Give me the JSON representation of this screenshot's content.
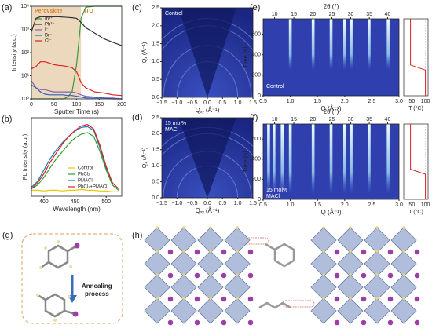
{
  "panel_labels": [
    "(a)",
    "(b)",
    "(c)",
    "(d)",
    "(e)",
    "(f)",
    "(g)",
    "(h)"
  ],
  "diagram": {
    "annealing": [
      "Annealing",
      "process"
    ]
  },
  "chart_data": [
    {
      "type": "line",
      "log_y": true,
      "x": [
        0,
        10,
        20,
        30,
        40,
        50,
        60,
        70,
        80,
        90,
        100,
        110,
        120,
        140,
        160,
        180,
        200
      ],
      "xlim": [
        0,
        200
      ],
      "xticks": [
        0,
        50,
        100,
        150,
        200
      ],
      "ylim": [
        1,
        10000
      ],
      "yticks": [
        {
          "value": 1,
          "label": "10⁰"
        },
        {
          "value": 10,
          "label": "10¹"
        },
        {
          "value": 100,
          "label": "10²"
        },
        {
          "value": 1000,
          "label": "10³"
        },
        {
          "value": 10000,
          "label": "10⁴"
        }
      ],
      "xlabel": "Sputter Time (s)",
      "ylabel": "Intensity (a.u.)",
      "legend": "upper left",
      "regions": [
        {
          "label": "Perovskite",
          "from": 0,
          "to": 110,
          "color": "#ecd9bd"
        },
        {
          "label": "ITO",
          "from": 110,
          "to": 200,
          "color": "#ffffff"
        }
      ],
      "series": [
        {
          "name": "In³⁺",
          "color": "#3a9a3a",
          "values": [
            1,
            1,
            1,
            1,
            1,
            1,
            1,
            1,
            1.2,
            2,
            30,
            3000,
            9000,
            10000,
            10000,
            10000,
            10000
          ]
        },
        {
          "name": "Pb²⁺",
          "color": "#333333",
          "values": [
            800,
            3000,
            3500,
            3500,
            3500,
            3500,
            3500,
            3400,
            3300,
            3200,
            3000,
            2000,
            1200,
            700,
            400,
            280,
            200
          ]
        },
        {
          "name": "I⁻",
          "color": "#9060b0",
          "values": [
            6,
            3,
            2.5,
            2.5,
            2.2,
            2,
            2,
            2,
            2,
            2,
            1.8,
            1.5,
            1.3,
            1.2,
            1.1,
            1.1,
            1
          ]
        },
        {
          "name": "Br⁻",
          "color": "#3060c0",
          "values": [
            4,
            3,
            2,
            1.6,
            1.5,
            1.5,
            1.5,
            1.5,
            1.4,
            1.4,
            1.3,
            1.2,
            1.1,
            1.1,
            1.1,
            1,
            1
          ]
        },
        {
          "name": "Cl⁻",
          "color": "#e02020",
          "values": [
            20,
            25,
            40,
            40,
            35,
            30,
            28,
            27,
            25,
            22,
            15,
            5,
            3,
            2,
            1.8,
            1.5,
            1.4
          ]
        }
      ]
    },
    {
      "type": "line",
      "x": [
        380,
        390,
        400,
        410,
        420,
        430,
        440,
        450,
        460,
        470,
        480,
        490,
        500,
        510,
        520
      ],
      "xlim": [
        380,
        525
      ],
      "xticks": [
        400,
        450,
        500
      ],
      "ylim": [
        0,
        1.05
      ],
      "xlabel": "Wavelength (nm)",
      "ylabel": "PL Intensity (a.u.)",
      "legend": "lower right",
      "series": [
        {
          "name": "Control",
          "color": "#e8c800",
          "values": [
            0.08,
            0.08,
            0.07,
            0.08,
            0.08,
            0.07,
            0.08,
            0.08,
            0.09,
            0.08,
            0.08,
            0.07,
            0.07,
            0.06,
            0.06
          ]
        },
        {
          "name": "PbCl₂",
          "color": "#2ca02c",
          "values": [
            0.1,
            0.15,
            0.25,
            0.38,
            0.5,
            0.6,
            0.7,
            0.78,
            0.83,
            0.85,
            0.8,
            0.6,
            0.35,
            0.15,
            0.08
          ]
        },
        {
          "name": "PMACl",
          "color": "#1f77b4",
          "values": [
            0.12,
            0.2,
            0.35,
            0.5,
            0.62,
            0.72,
            0.8,
            0.87,
            0.92,
            0.93,
            0.88,
            0.65,
            0.38,
            0.18,
            0.1
          ]
        },
        {
          "name": "PbCl₂+PMACl",
          "color": "#e02020",
          "values": [
            0.1,
            0.18,
            0.3,
            0.45,
            0.58,
            0.7,
            0.8,
            0.88,
            0.94,
            0.96,
            0.9,
            0.68,
            0.4,
            0.18,
            0.1
          ]
        }
      ]
    },
    {
      "type": "image",
      "note_text": [
        "Control"
      ],
      "xlim": [
        -1.5,
        1.5
      ],
      "xticks": [
        {
          "value": -1.5,
          "label": "−1.5"
        },
        {
          "value": -1,
          "label": "−1.0"
        },
        {
          "value": -0.5,
          "label": "−0.5"
        },
        {
          "value": 0,
          "label": "0.0"
        },
        0.5,
        {
          "value": 1,
          "label": "1.0"
        },
        1.5
      ],
      "ylim": [
        0,
        2.5
      ],
      "yticks": [
        {
          "value": 0,
          "label": "0.0"
        },
        0.5,
        {
          "value": 1,
          "label": "1.0"
        },
        1.5,
        {
          "value": 2,
          "label": "2.0"
        },
        2.5
      ],
      "xlabel": {
        "main": "Q",
        "sub": "xy",
        "unit": "(Å⁻¹)"
      },
      "ylabel": {
        "main": "Q",
        "sub": "z",
        "unit": "(Å⁻¹)"
      },
      "rings": [
        1,
        1.45,
        2,
        2.2
      ]
    },
    {
      "type": "image",
      "note_text": [
        "15 mol%",
        "MACl"
      ],
      "xlim": [
        -1.5,
        1.5
      ],
      "xticks": [
        {
          "value": -1.5,
          "label": "−1.5"
        },
        {
          "value": -1,
          "label": "−1.0"
        },
        {
          "value": -0.5,
          "label": "−0.5"
        },
        {
          "value": 0,
          "label": "0.0"
        },
        0.5,
        {
          "value": 1,
          "label": "1.0"
        },
        1.5
      ],
      "ylim": [
        0,
        2.5
      ],
      "yticks": [
        {
          "value": 0,
          "label": "0.0"
        },
        0.5,
        {
          "value": 1,
          "label": "1.0"
        },
        1.5,
        {
          "value": 2,
          "label": "2.0"
        },
        2.5
      ],
      "xlabel": {
        "main": "Q",
        "sub": "xy",
        "unit": "(Å⁻¹)"
      },
      "ylabel": {
        "main": "Q",
        "sub": "z",
        "unit": "(Å⁻¹)"
      },
      "rings": [
        1,
        1.45,
        2,
        2.2
      ]
    },
    {
      "type": "heatmap",
      "note_text": [
        "Control"
      ],
      "xlim": [
        0.5,
        3
      ],
      "xticks": [
        0.5,
        {
          "value": 1,
          "label": "1.0"
        },
        1.5,
        {
          "value": 2,
          "label": "2.0"
        },
        2.5,
        {
          "value": 3,
          "label": "3.0"
        }
      ],
      "x2ticks": [
        10,
        15,
        20,
        25,
        30,
        35,
        40
      ],
      "x2label": "2θ (°)",
      "ylim": [
        0,
        750
      ],
      "yticks": [
        0,
        200,
        400,
        600
      ],
      "ylabel": "Time (s)",
      "xlabel": "Q (Å⁻¹)",
      "peaks": [
        1,
        1.42,
        1.75,
        2,
        2.12,
        2.45,
        2.8
      ],
      "onset": 250,
      "tlim": [
        20,
        110
      ],
      "tticks": [
        50,
        100
      ],
      "tlabel": "T (°C)",
      "t_time": [
        0,
        250,
        300,
        750
      ],
      "t_temp": [
        100,
        100,
        45,
        45
      ]
    },
    {
      "type": "heatmap",
      "note_text": [
        "15 mol%",
        "MACl"
      ],
      "xlim": [
        0.5,
        3
      ],
      "xticks": [
        0.5,
        {
          "value": 1,
          "label": "1.0"
        },
        1.5,
        {
          "value": 2,
          "label": "2.0"
        },
        2.5,
        {
          "value": 3,
          "label": "3.0"
        }
      ],
      "x2ticks": [
        10,
        15,
        20,
        25,
        30,
        35,
        40
      ],
      "x2label": "2θ (°)",
      "ylim": [
        0,
        750
      ],
      "yticks": [
        0,
        200,
        400,
        600
      ],
      "ylabel": "Time (s)",
      "xlabel": "Q (Å⁻¹)",
      "peaks": [
        0.6,
        0.7,
        0.85,
        1,
        1.42,
        1.75,
        2,
        2.12,
        2.45,
        2.8
      ],
      "onset": 60,
      "tlim": [
        20,
        110
      ],
      "tticks": [
        50,
        100
      ],
      "tlabel": "T (°C)",
      "t_time": [
        0,
        250,
        300,
        750
      ],
      "t_temp": [
        100,
        100,
        45,
        45
      ]
    }
  ]
}
